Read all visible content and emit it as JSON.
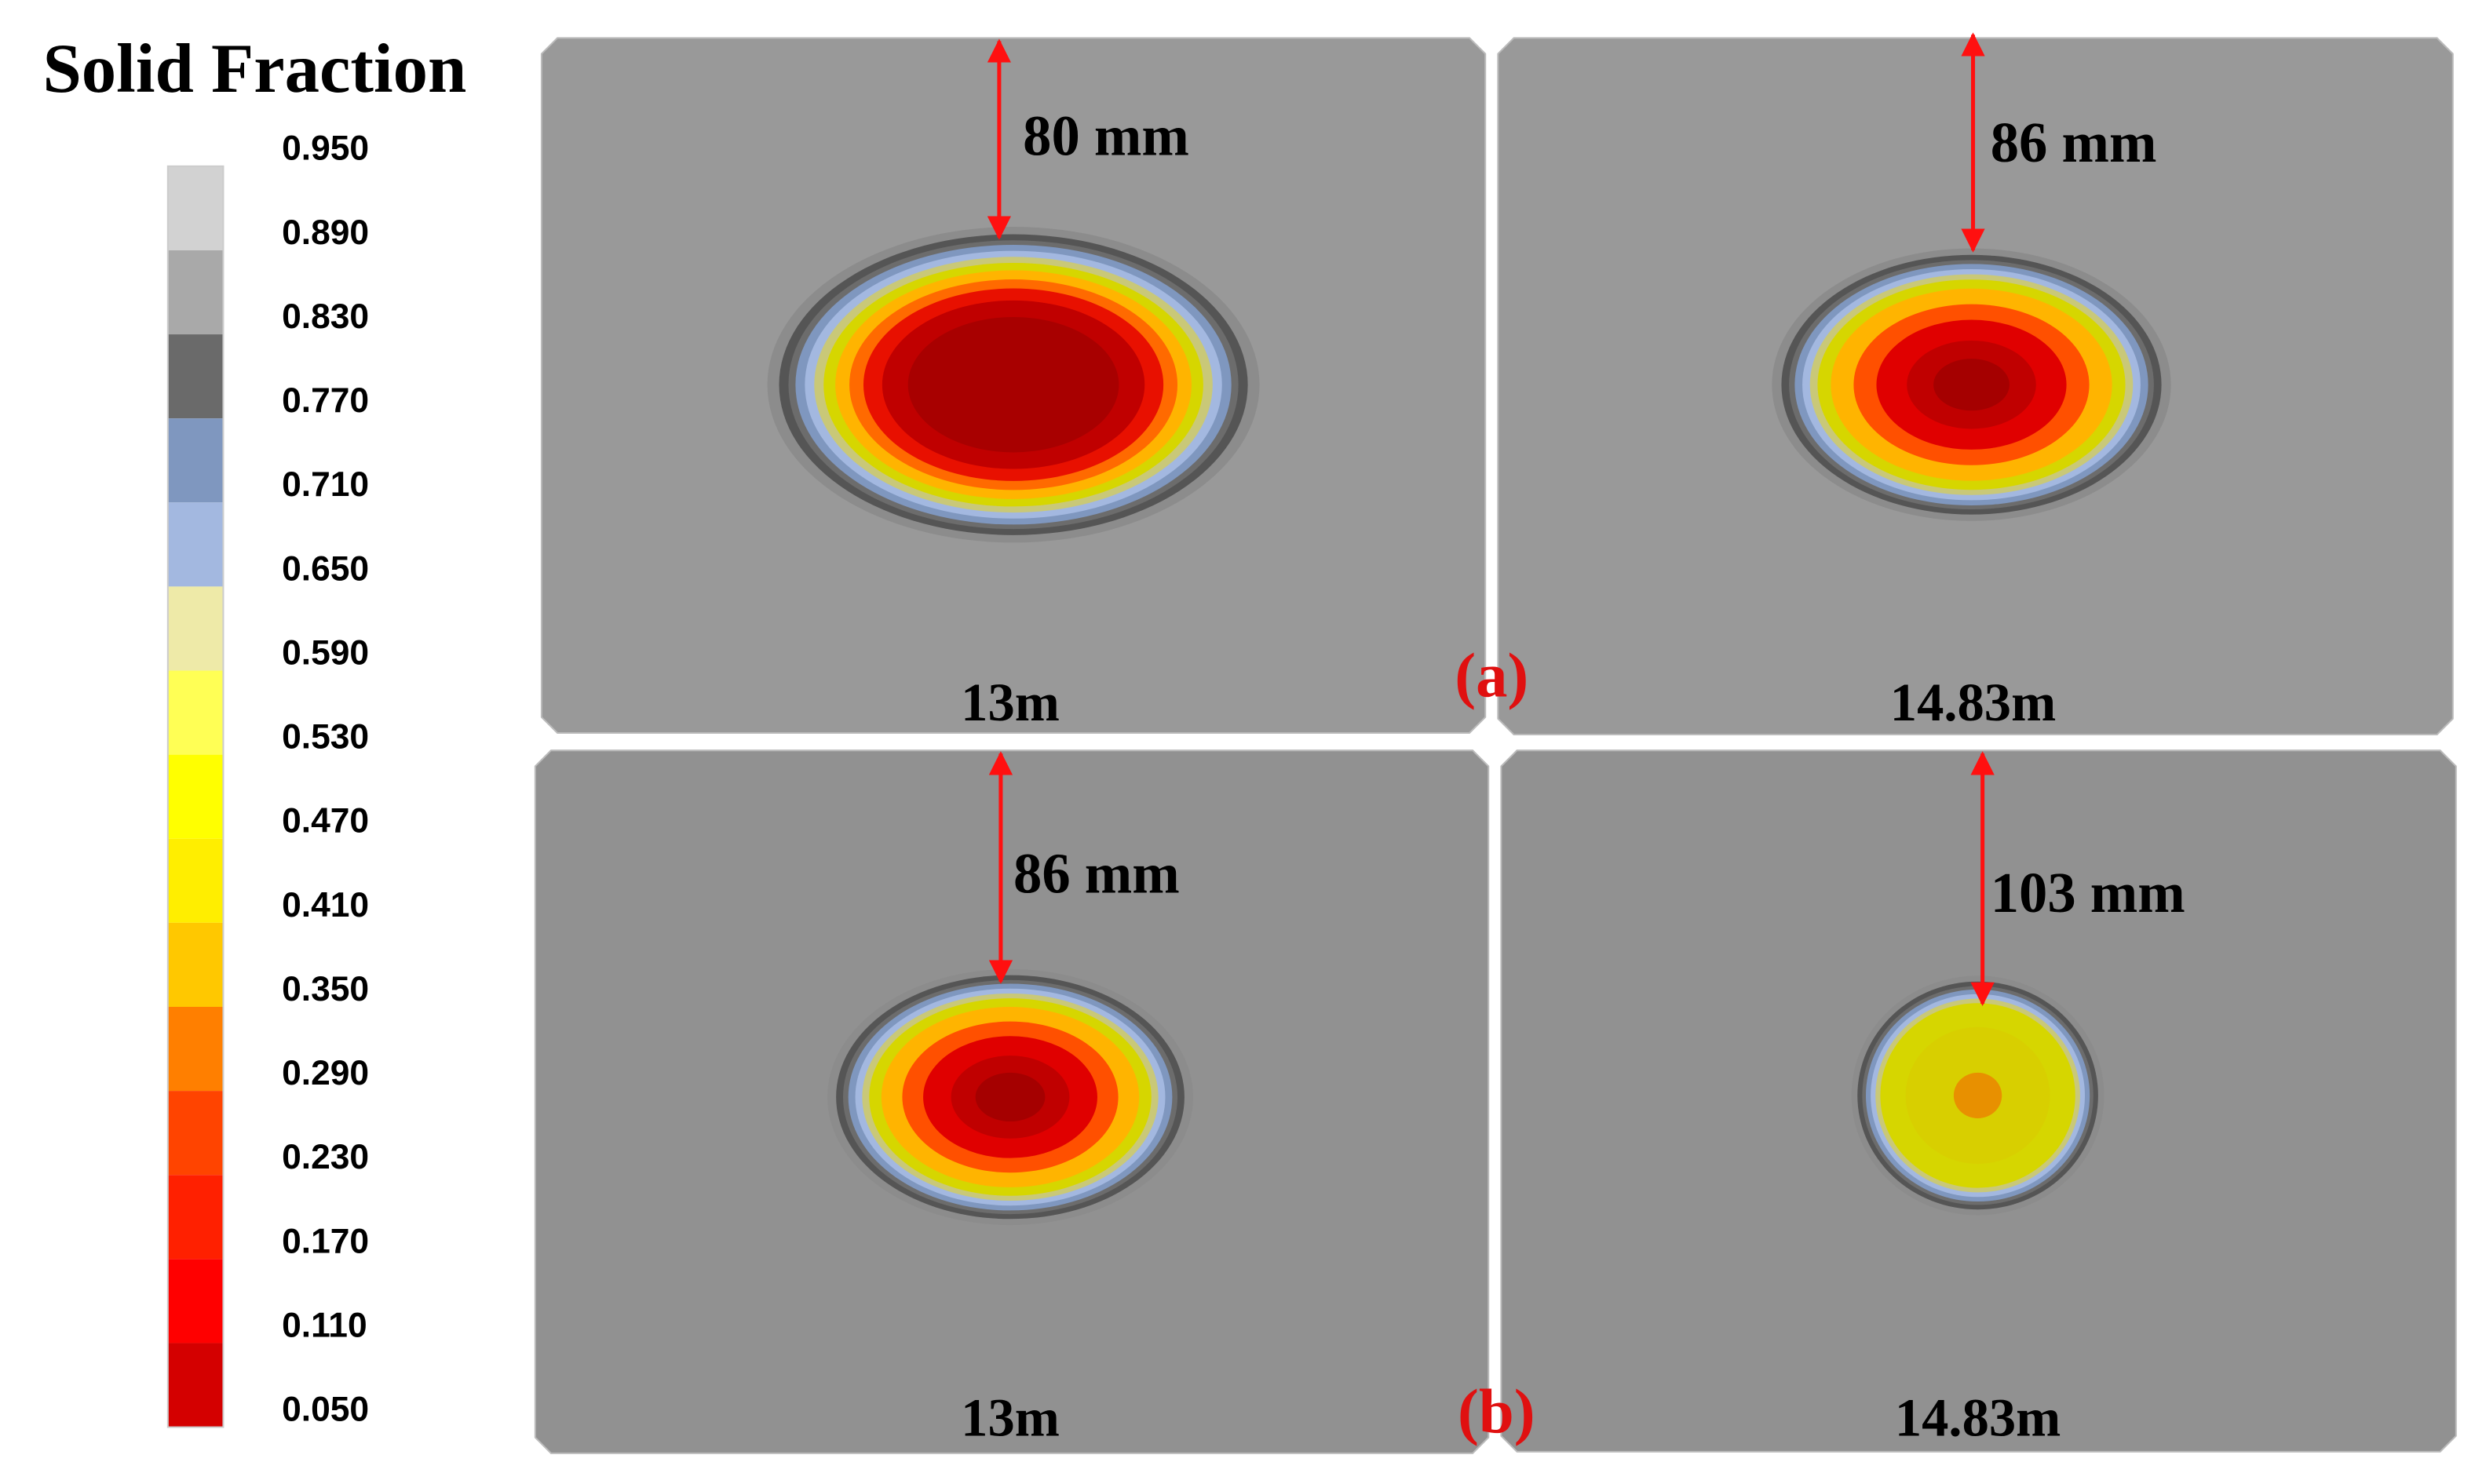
{
  "legend": {
    "title": "Solid Fraction",
    "labels": [
      "0.950",
      "0.890",
      "0.830",
      "0.770",
      "0.710",
      "0.650",
      "0.590",
      "0.530",
      "0.470",
      "0.410",
      "0.350",
      "0.290",
      "0.230",
      "0.170",
      "0.110",
      "0.050"
    ],
    "colors": [
      "#d2d2d2",
      "#a9a9a9",
      "#6a6a6a",
      "#7f97bf",
      "#a3b8e0",
      "#eeeaa8",
      "#ffff55",
      "#ffff00",
      "#ffee00",
      "#ffc800",
      "#ff7f00",
      "#ff4400",
      "#ff2000",
      "#ff0000",
      "#d40000"
    ]
  },
  "panel_tags": [
    "(a)",
    "(b)"
  ],
  "panels": [
    {
      "depth_label": "80 mm",
      "position_label": "13m"
    },
    {
      "depth_label": "86 mm",
      "position_label": "14.83m"
    },
    {
      "depth_label": "86 mm",
      "position_label": "13m"
    },
    {
      "depth_label": "103 mm",
      "position_label": "14.83m"
    }
  ]
}
